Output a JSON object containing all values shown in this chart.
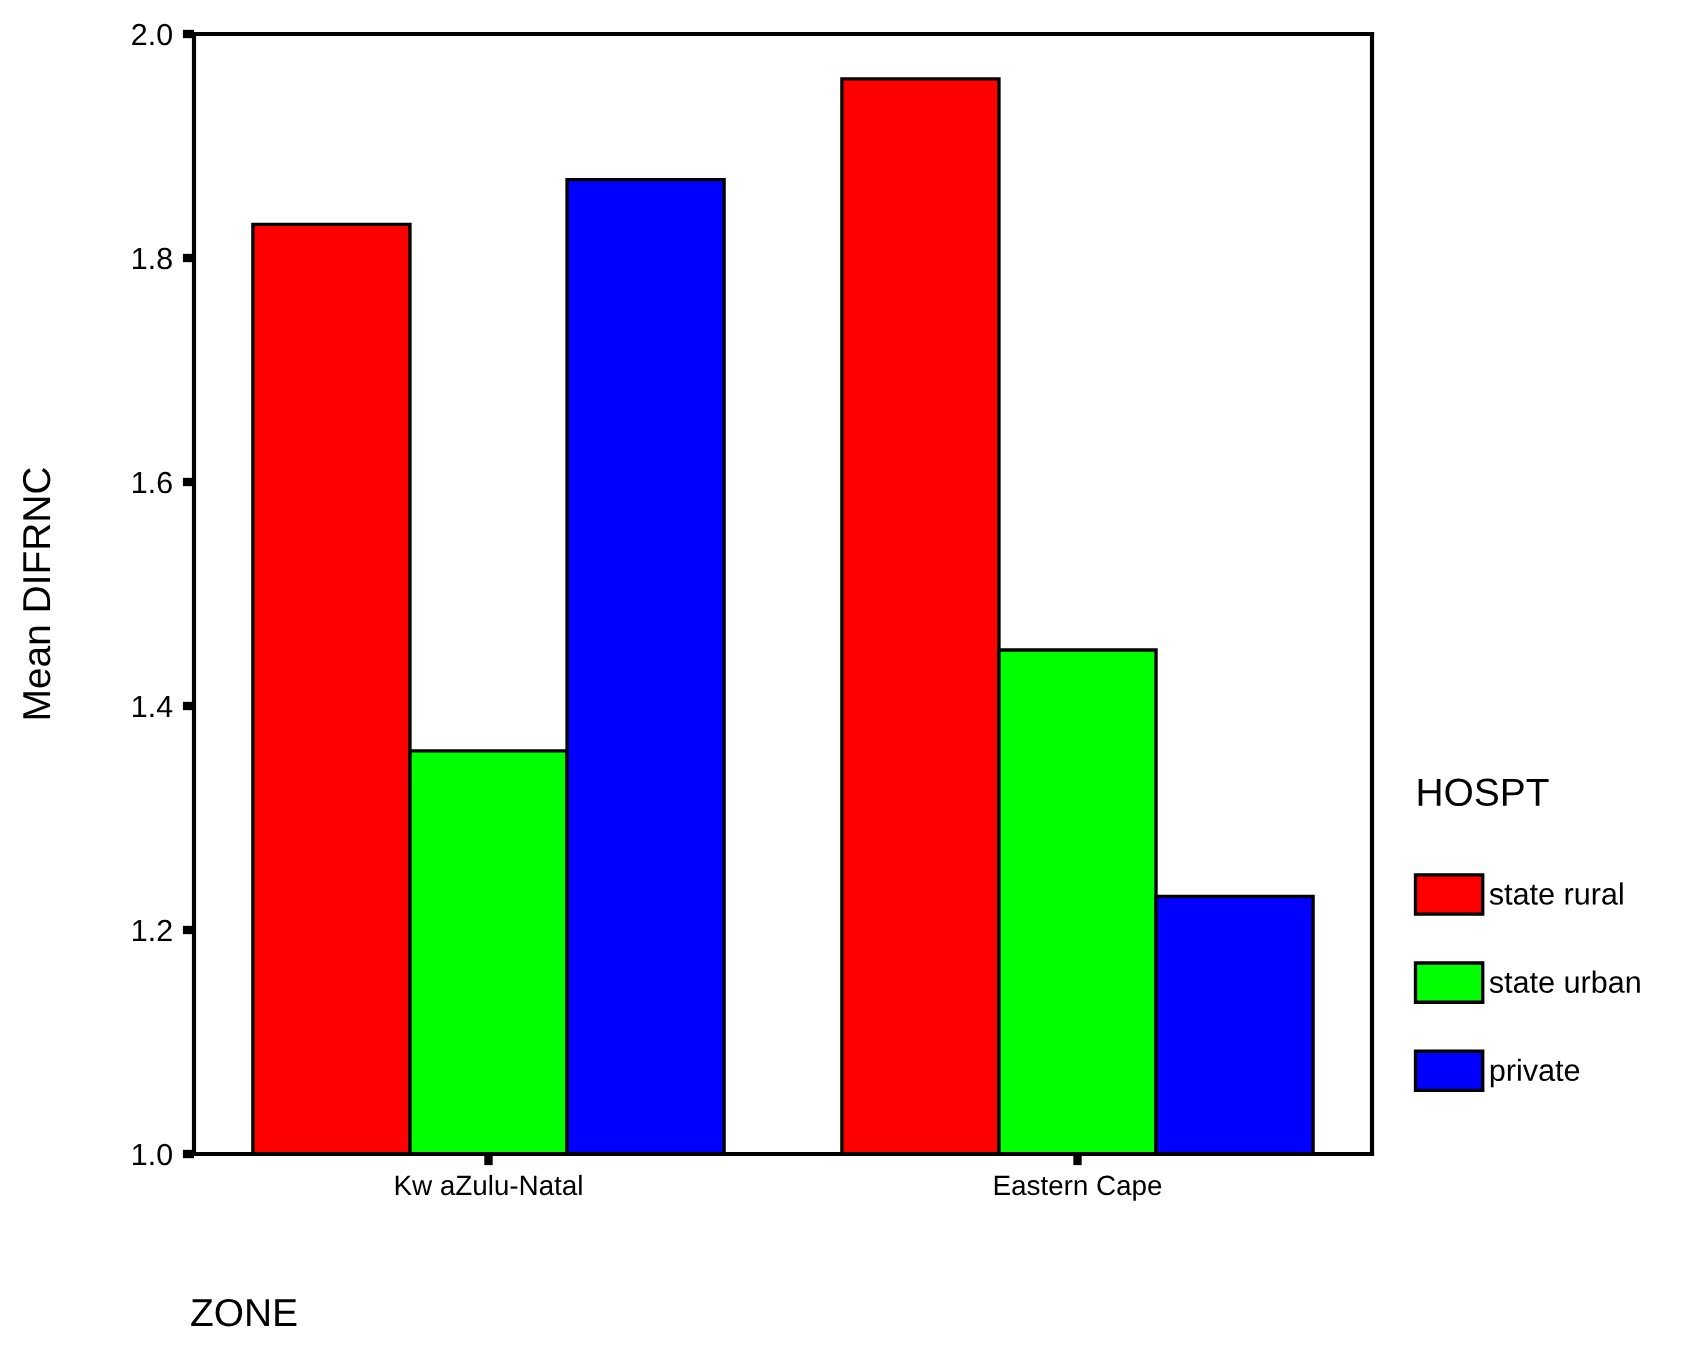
{
  "chart_data": {
    "type": "bar",
    "xlabel": "ZONE",
    "ylabel": "Mean DIFRNC",
    "legend_title": "HOSPT",
    "categories": [
      "Kw aZulu-Natal",
      "Eastern Cape"
    ],
    "series": [
      {
        "name": "state rural",
        "color": "#ff0000",
        "values": [
          1.83,
          1.96
        ]
      },
      {
        "name": "state urban",
        "color": "#00ff00",
        "values": [
          1.36,
          1.45
        ]
      },
      {
        "name": "private",
        "color": "#0000ff",
        "values": [
          1.87,
          1.23
        ]
      }
    ],
    "ylim": [
      1.0,
      2.0
    ],
    "yticks": [
      {
        "value": 1.0,
        "label": "1.0"
      },
      {
        "value": 1.2,
        "label": "1.2"
      },
      {
        "value": 1.4,
        "label": "1.4"
      },
      {
        "value": 1.6,
        "label": "1.6"
      },
      {
        "value": 1.8,
        "label": "1.8"
      },
      {
        "value": 2.0,
        "label": "2.0"
      }
    ],
    "grid": false,
    "legend": "right"
  }
}
